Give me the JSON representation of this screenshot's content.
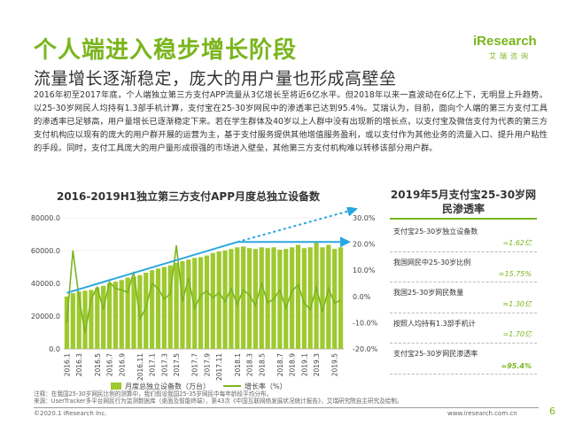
{
  "header": {
    "title": "个人端进入稳步增长阶段",
    "subtitle": "流量增长逐渐稳定，庞大的用户量也形成高壁垒",
    "logo_text": "iResearch",
    "logo_cn": "艾瑞咨询"
  },
  "body_text": "2016年初至2017年底，个人端独立第三方支付APP流量从3亿增长至将近6亿水平。但2018年以来一直波动在6亿上下，无明显上升趋势。以25-30岁网民人均持有1.3部手机计算，支付宝在25-30岁网民中的渗透率已达到95.4%。艾瑞认为，目前，面向个人端的第三方支付工具的渗透率已足够高，用户量增长已逐渐稳定下来。若在学生群体及40岁以上人群中没有出现新的增长点，以支付宝及微信支付为代表的第三方支付机构应以现有的庞大的用户群开展的运营为主，基于支付服务提供其他增值服务盈利，或以支付作为其他业务的流量入口、提升用户粘性的手段。同时，支付工具庞大的用户量形成很强的市场进入壁垒，其他第三方支付机构难以转移该部分用户群。",
  "chart_data": {
    "type": "bar",
    "title": "2016-2019H1独立第三方支付APP月度总独立设备数",
    "x_tick_labels": [
      "2016.1",
      "2016.3",
      "2016.5",
      "2016.7",
      "2016.9",
      "2016.11",
      "2017.1",
      "2017.3",
      "2017.5",
      "2017.7",
      "2017.9",
      "2017.11",
      "2018.1",
      "2018.3",
      "2018.5",
      "2018.7",
      "2018.9",
      "2019.1",
      "2019.3",
      "2019.5"
    ],
    "series": [
      {
        "name": "月度总独立设备数（万台）",
        "axis": "left",
        "values": [
          32000,
          34000,
          35000,
          35500,
          36000,
          37500,
          38500,
          40000,
          41000,
          42000,
          43500,
          44000,
          45000,
          46500,
          48000,
          49000,
          50000,
          51000,
          52500,
          53500,
          54500,
          55500,
          56000,
          57000,
          58500,
          59500,
          60000,
          61000,
          62000,
          62500,
          61500,
          61000,
          62000,
          61500,
          62000,
          60500,
          61000,
          62000,
          63500,
          61500,
          62000,
          65500,
          62000,
          63500,
          61000,
          62000
        ]
      },
      {
        "name": "增长率（%）",
        "axis": "right",
        "values": [
          -10.0,
          17.5,
          -0.5,
          -14.0,
          -1.0,
          3.5,
          -5.0,
          5.5,
          3.0,
          2.5,
          1.5,
          9.5,
          -8.5,
          -4.5,
          5.0,
          3.0,
          -1.0,
          1.0,
          19.5,
          -2.0,
          7.0,
          -4.5,
          0.5,
          2.0,
          -0.5,
          1.5,
          -2.0,
          3.0,
          -3.0,
          2.5,
          0.5,
          -3.5,
          5.0,
          -2.5,
          -1.0,
          2.5,
          -4.5,
          2.0,
          4.5,
          -2.5,
          -5.0,
          3.5,
          -6.0,
          3.0,
          -2.5,
          -1.5
        ]
      }
    ],
    "left_axis": {
      "ylim": [
        0,
        80000
      ],
      "ticks": [
        "0.0",
        "20000.0",
        "40000.0",
        "60000.0",
        "80000.0"
      ]
    },
    "right_axis": {
      "ylim": [
        -20.0,
        30.0
      ],
      "ticks": [
        "-20.0%",
        "-10.0%",
        "0.0%",
        "10.0%",
        "20.0%",
        "30.0%"
      ]
    },
    "colors": {
      "bar": "#9ec92f",
      "line": "#7ab51d",
      "trend_arrow": "#2aa7e0"
    },
    "legend_position": "bottom"
  },
  "side_panel": {
    "title": "2019年5月支付宝25-30岁网民渗透率",
    "rows": [
      {
        "label": "支付宝25-30岁独立设备数",
        "value": "=1.62亿"
      },
      {
        "label": "我国网民中25-30岁比例",
        "value": "≈15.75%"
      },
      {
        "label": "我国25-30岁网民数量",
        "value": "≈1.30亿"
      },
      {
        "label": "按照人均持有1.3部手机计",
        "value": "=1.70亿"
      },
      {
        "label": "支付宝25-30岁网民渗透率",
        "value": "=95.4%"
      }
    ]
  },
  "footnote": {
    "line1": "注释：在我国25-30岁网民比例的测算中，我们假设我国25-35岁网民中每年龄段平均分布。",
    "line2": "来源：UserTracker多平台网民行为监测数据库（桌面及智能终端），第43次《中国互联网络发展状况统计报告》，艾瑞研究院自主研究及绘制。"
  },
  "footer": {
    "copyright": "©2020.1 iResearch Inc.",
    "website": "www.iresearch.com.cn",
    "page": "6"
  }
}
